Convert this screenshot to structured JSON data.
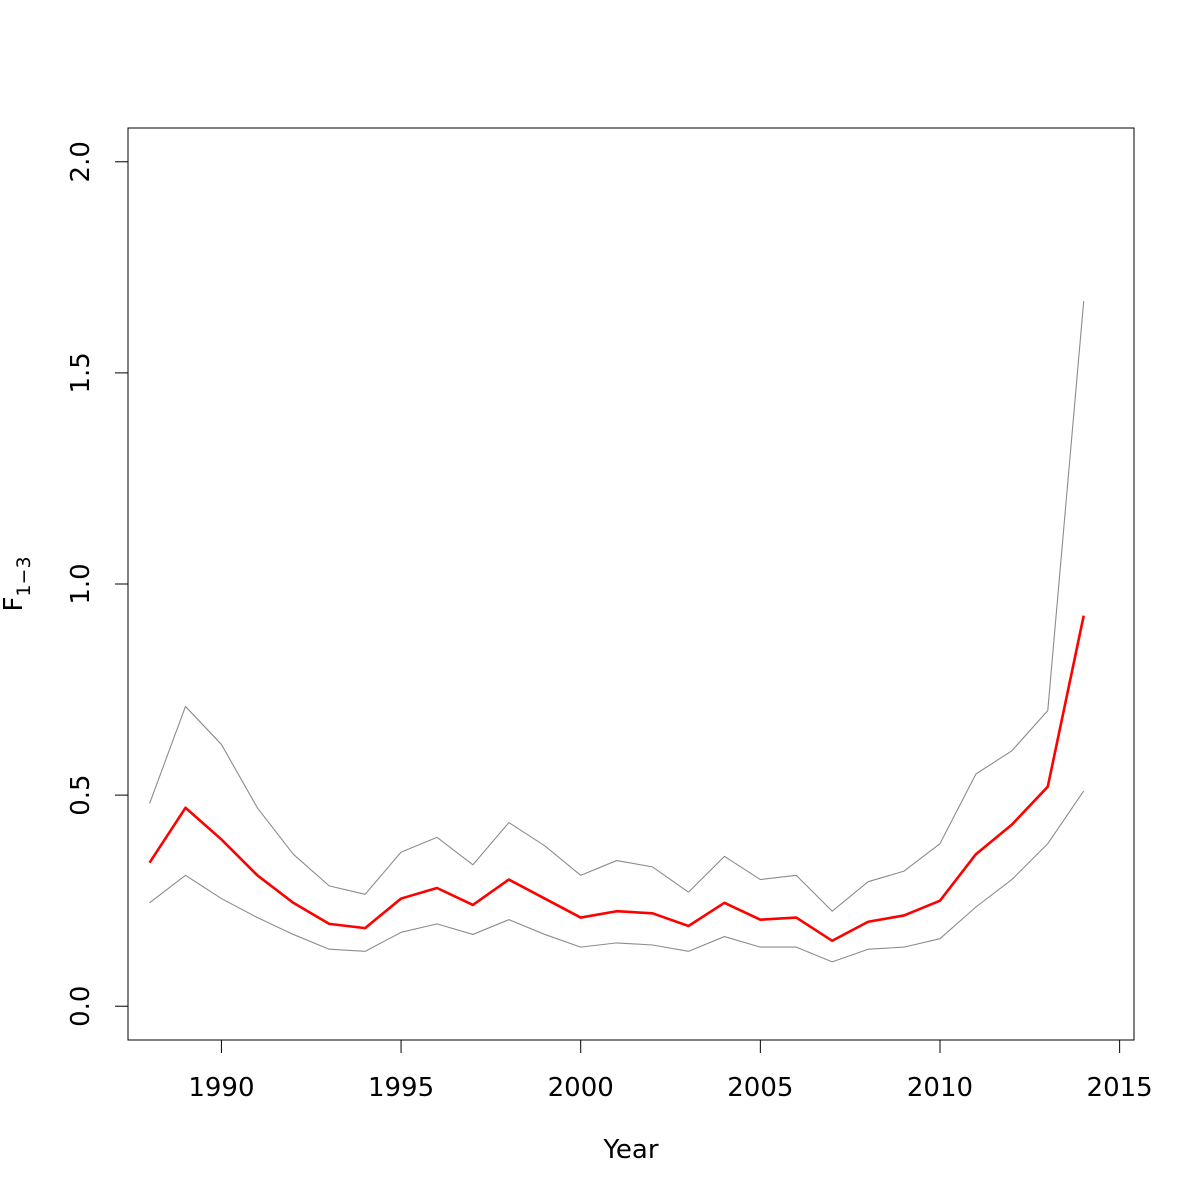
{
  "chart_data": {
    "type": "line",
    "xlabel": "Year",
    "ylabel": {
      "main": "F",
      "subscript": "1−3"
    },
    "xlim": [
      1987.4,
      2015.4
    ],
    "ylim": [
      -0.08,
      2.08
    ],
    "xticks": [
      1990,
      1995,
      2000,
      2005,
      2010,
      2015
    ],
    "xtick_labels": [
      "1990",
      "1995",
      "2000",
      "2005",
      "2010",
      "2015"
    ],
    "yticks": [
      0.0,
      0.5,
      1.0,
      1.5,
      2.0
    ],
    "ytick_labels": [
      "0.0",
      "0.5",
      "1.0",
      "1.5",
      "2.0"
    ],
    "grid": false,
    "x": [
      1988,
      1989,
      1990,
      1991,
      1992,
      1993,
      1994,
      1995,
      1996,
      1997,
      1998,
      1999,
      2000,
      2001,
      2002,
      2003,
      2004,
      2005,
      2006,
      2007,
      2008,
      2009,
      2010,
      2011,
      2012,
      2013,
      2014
    ],
    "series": [
      {
        "role": "upper",
        "color": "#8c8c8c",
        "values": [
          0.48,
          0.71,
          0.62,
          0.47,
          0.36,
          0.285,
          0.265,
          0.365,
          0.4,
          0.335,
          0.435,
          0.38,
          0.31,
          0.345,
          0.33,
          0.27,
          0.355,
          0.3,
          0.31,
          0.225,
          0.295,
          0.32,
          0.385,
          0.55,
          0.605,
          0.7,
          1.67
        ]
      },
      {
        "role": "estimate",
        "color": "#ff0000",
        "values": [
          0.34,
          0.47,
          0.395,
          0.31,
          0.245,
          0.195,
          0.185,
          0.255,
          0.28,
          0.24,
          0.3,
          0.255,
          0.21,
          0.225,
          0.22,
          0.19,
          0.245,
          0.205,
          0.21,
          0.155,
          0.2,
          0.215,
          0.25,
          0.36,
          0.43,
          0.52,
          0.925
        ]
      },
      {
        "role": "lower",
        "color": "#8c8c8c",
        "values": [
          0.245,
          0.31,
          0.255,
          0.21,
          0.17,
          0.135,
          0.13,
          0.175,
          0.195,
          0.17,
          0.205,
          0.17,
          0.14,
          0.15,
          0.145,
          0.13,
          0.165,
          0.14,
          0.14,
          0.105,
          0.135,
          0.14,
          0.16,
          0.235,
          0.3,
          0.385,
          0.51
        ]
      }
    ]
  }
}
